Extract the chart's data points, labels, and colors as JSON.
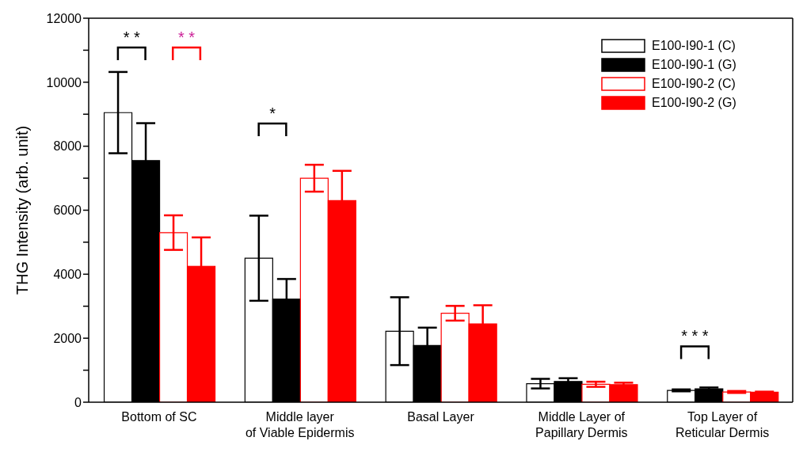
{
  "chart_data": {
    "type": "bar",
    "ylabel": "THG Intensity (arb. unit)",
    "categories": [
      "Bottom of SC",
      "Middle layer\nof Viable Epidermis",
      "Basal Layer",
      "Middle Layer of\nPapillary Dermis",
      "Top Layer of\nReticular Dermis"
    ],
    "series": [
      {
        "name": "E100-I90-1 (C)",
        "color": "#000000",
        "values": [
          9050,
          4500,
          2220,
          580,
          370
        ],
        "errors": [
          1270,
          1330,
          1060,
          150,
          30
        ]
      },
      {
        "name": "E100-I90-1 (G)",
        "color": "#000000",
        "values": [
          7550,
          3220,
          1770,
          650,
          420
        ],
        "errors": [
          1170,
          630,
          560,
          100,
          40
        ]
      },
      {
        "name": "E100-I90-2 (C)",
        "color": "#ff0000",
        "values": [
          5300,
          7000,
          2780,
          560,
          320
        ],
        "errors": [
          540,
          420,
          230,
          80,
          30
        ]
      },
      {
        "name": "E100-I90-2 (G)",
        "color": "#ff0000",
        "values": [
          4250,
          6300,
          2450,
          550,
          310
        ],
        "errors": [
          900,
          930,
          580,
          60,
          20
        ]
      }
    ],
    "ylim": [
      0,
      12000
    ],
    "yticks": [
      0,
      {
        "value": 1000,
        "label": null
      },
      2000,
      {
        "value": 3000,
        "label": null
      },
      4000,
      {
        "value": 5000,
        "label": null
      },
      6000,
      {
        "value": 7000,
        "label": null
      },
      8000,
      {
        "value": 9000,
        "label": null
      },
      10000,
      {
        "value": 11000,
        "label": null
      },
      12000
    ],
    "annotations": [
      "* *",
      "* *",
      "*",
      "* * *"
    ],
    "grid": false,
    "legend": "top right"
  }
}
